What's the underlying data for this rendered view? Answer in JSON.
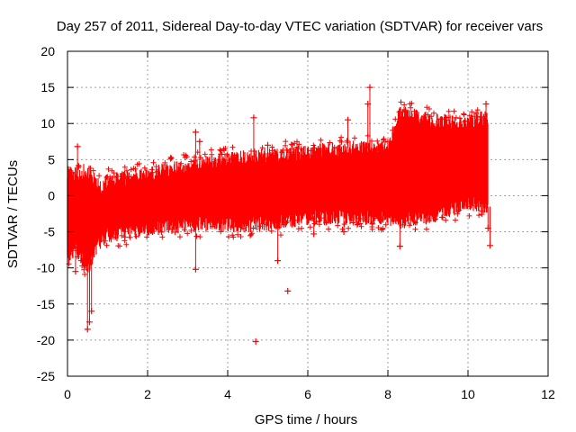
{
  "chart_data": {
    "type": "scatter",
    "title": "Day 257 of 2011, Sidereal Day-to-day VTEC variation (SDTVAR) for receiver vars",
    "xlabel": "GPS time / hours",
    "ylabel": "SDTVAR / TECUs",
    "xlim": [
      0,
      12
    ],
    "ylim": [
      -25,
      20
    ],
    "xticks": [
      0,
      2,
      4,
      6,
      8,
      10,
      12
    ],
    "yticks": [
      -25,
      -20,
      -15,
      -10,
      -5,
      0,
      5,
      10,
      15,
      20
    ],
    "grid": true,
    "series": [
      {
        "name": "SDTVAR",
        "color": "#ff0000",
        "marker": "plus",
        "envelope": {
          "x": [
            0.0,
            0.2,
            0.5,
            0.8,
            1.0,
            2.0,
            3.0,
            4.0,
            5.0,
            6.0,
            7.0,
            8.0,
            8.3,
            9.0,
            10.0,
            10.5
          ],
          "upper": [
            3.0,
            3.0,
            3.5,
            1.0,
            2.0,
            3.0,
            4.0,
            5.0,
            5.5,
            6.0,
            6.5,
            6.5,
            11.5,
            10.5,
            10.0,
            11.0
          ],
          "lower": [
            -9.0,
            -7.0,
            -10.0,
            -6.5,
            -5.5,
            -4.5,
            -4.0,
            -4.0,
            -4.0,
            -3.0,
            -3.0,
            -3.0,
            -3.5,
            -3.0,
            -1.0,
            -1.5
          ]
        },
        "outliers": [
          {
            "x": 0.5,
            "y": -18.5
          },
          {
            "x": 0.55,
            "y": -17.5
          },
          {
            "x": 0.6,
            "y": -16.0
          },
          {
            "x": 0.25,
            "y": 6.8
          },
          {
            "x": 0.2,
            "y": -10.5
          },
          {
            "x": 3.2,
            "y": 8.8
          },
          {
            "x": 3.3,
            "y": 7.5
          },
          {
            "x": 3.2,
            "y": -10.2
          },
          {
            "x": 4.65,
            "y": 10.8
          },
          {
            "x": 4.7,
            "y": -20.2
          },
          {
            "x": 5.0,
            "y": 7.0
          },
          {
            "x": 5.5,
            "y": -13.2
          },
          {
            "x": 5.25,
            "y": -9.0
          },
          {
            "x": 6.15,
            "y": -5.3
          },
          {
            "x": 7.0,
            "y": 10.5
          },
          {
            "x": 6.9,
            "y": -5.0
          },
          {
            "x": 7.55,
            "y": 15.0
          },
          {
            "x": 7.5,
            "y": 12.7
          },
          {
            "x": 8.3,
            "y": -7.0
          },
          {
            "x": 10.45,
            "y": 12.7
          },
          {
            "x": 10.55,
            "y": -6.9
          },
          {
            "x": 10.5,
            "y": -4.5
          }
        ]
      }
    ]
  }
}
